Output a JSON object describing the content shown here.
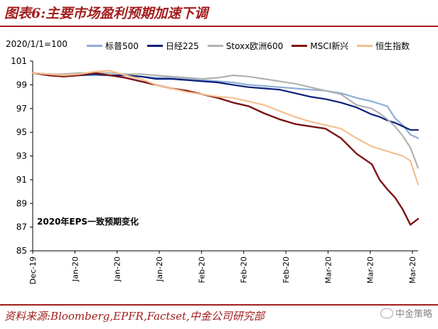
{
  "title": "图表6:主要市场盈利预期加速下调",
  "footer": "资料来源:Bloomberg,EPFR,Factset,中金公司研究部",
  "watermark": "中金策略",
  "chart_data": {
    "type": "line",
    "base_label": "2020/1/1=100",
    "annotation": "2020年EPS一致预期变化",
    "ylim": [
      85,
      101
    ],
    "yticks": [
      85,
      87,
      89,
      91,
      93,
      95,
      97,
      99,
      101
    ],
    "xlim": [
      0,
      100
    ],
    "x_tick_labels": [
      "Dec-19",
      "Jan-20",
      "Jan-20",
      "Jan-20",
      "Feb-20",
      "Feb-20",
      "Feb-20",
      "Mar-20",
      "Mar-20",
      "Mar-20"
    ],
    "x": [
      0,
      4,
      8,
      12,
      16,
      20,
      24,
      28,
      32,
      36,
      40,
      44,
      48,
      52,
      56,
      60,
      64,
      68,
      72,
      76,
      80,
      84,
      88,
      90,
      92,
      94,
      96,
      98,
      100
    ],
    "series": [
      {
        "name": "标普500",
        "color": "#8eaed6",
        "width": 2.2,
        "values": [
          100,
          99.9,
          99.8,
          99.8,
          99.8,
          99.8,
          99.8,
          99.7,
          99.6,
          99.6,
          99.5,
          99.4,
          99.3,
          99.2,
          99.0,
          98.9,
          98.8,
          98.7,
          98.6,
          98.5,
          98.3,
          97.9,
          97.6,
          97.4,
          97.2,
          96.2,
          95.6,
          94.8,
          94.5
        ]
      },
      {
        "name": "日经225",
        "color": "#0c1f7a",
        "width": 2.2,
        "values": [
          100,
          99.9,
          99.8,
          99.8,
          99.9,
          99.8,
          99.8,
          99.7,
          99.5,
          99.5,
          99.4,
          99.3,
          99.2,
          99.0,
          98.8,
          98.7,
          98.6,
          98.3,
          98.0,
          97.8,
          97.5,
          97.1,
          96.5,
          96.3,
          96.0,
          95.8,
          95.5,
          95.2,
          95.2
        ]
      },
      {
        "name": "Stoxx欧洲600",
        "color": "#b2b2b2",
        "width": 2.2,
        "values": [
          100,
          99.9,
          99.9,
          100,
          100,
          100,
          99.9,
          99.9,
          99.8,
          99.7,
          99.6,
          99.5,
          99.6,
          99.8,
          99.7,
          99.5,
          99.3,
          99.1,
          98.8,
          98.5,
          98.2,
          97.3,
          97.0,
          96.6,
          96.1,
          95.5,
          94.7,
          93.7,
          92.0
        ]
      },
      {
        "name": "MSCI新兴",
        "color": "#7b1315",
        "width": 2.4,
        "values": [
          100,
          99.8,
          99.7,
          99.8,
          100,
          99.8,
          99.6,
          99.3,
          99.0,
          98.7,
          98.5,
          98.2,
          97.9,
          97.5,
          97.2,
          96.6,
          96.1,
          95.7,
          95.5,
          95.3,
          94.5,
          93.2,
          92.3,
          91.0,
          90.2,
          89.5,
          88.5,
          87.2,
          87.7
        ]
      },
      {
        "name": "恒生指数",
        "color": "#f5bf8f",
        "width": 2.2,
        "values": [
          100,
          99.9,
          99.8,
          99.9,
          100.1,
          100.2,
          99.8,
          99.5,
          99.0,
          98.7,
          98.4,
          98.2,
          98.0,
          97.9,
          97.6,
          97.3,
          96.8,
          96.3,
          95.9,
          95.6,
          95.3,
          94.5,
          93.8,
          93.6,
          93.4,
          93.2,
          93.0,
          92.6,
          90.6
        ]
      }
    ]
  }
}
